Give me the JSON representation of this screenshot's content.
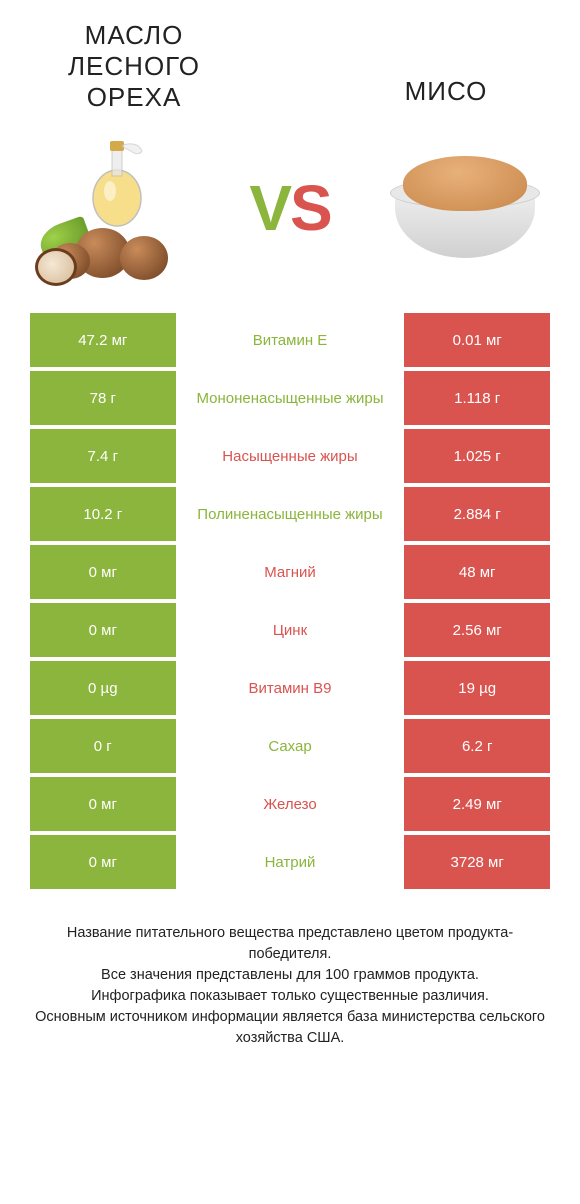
{
  "left_title": "МАСЛО ЛЕСНОГО ОРЕХА",
  "right_title": "МИСО",
  "vs_v": "V",
  "vs_s": "S",
  "colors": {
    "green": "#8bb53c",
    "red": "#d9534f",
    "bg": "#ffffff",
    "text": "#222222"
  },
  "rows": [
    {
      "left": "47.2 мг",
      "label": "Витамин E",
      "right": "0.01 мг",
      "winner": "left"
    },
    {
      "left": "78 г",
      "label": "Мононенасыщенные жиры",
      "right": "1.118 г",
      "winner": "left"
    },
    {
      "left": "7.4 г",
      "label": "Насыщенные жиры",
      "right": "1.025 г",
      "winner": "right"
    },
    {
      "left": "10.2 г",
      "label": "Полиненасыщенные жиры",
      "right": "2.884 г",
      "winner": "left"
    },
    {
      "left": "0 мг",
      "label": "Магний",
      "right": "48 мг",
      "winner": "right"
    },
    {
      "left": "0 мг",
      "label": "Цинк",
      "right": "2.56 мг",
      "winner": "right"
    },
    {
      "left": "0 µg",
      "label": "Витамин B9",
      "right": "19 µg",
      "winner": "right"
    },
    {
      "left": "0 г",
      "label": "Сахар",
      "right": "6.2 г",
      "winner": "left"
    },
    {
      "left": "0 мг",
      "label": "Железо",
      "right": "2.49 мг",
      "winner": "right"
    },
    {
      "left": "0 мг",
      "label": "Натрий",
      "right": "3728 мг",
      "winner": "left"
    }
  ],
  "footer": [
    "Название питательного вещества представлено цветом продукта-победителя.",
    "Все значения представлены для 100 граммов продукта.",
    "Инфографика показывает только существенные различия.",
    "Основным источником информации является база министерства сельского хозяйства США."
  ]
}
